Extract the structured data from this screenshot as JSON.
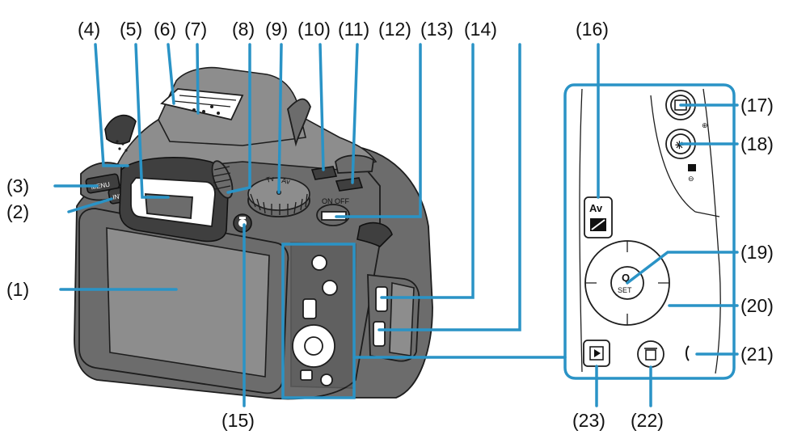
{
  "callouts": [
    {
      "id": 1,
      "label": "(1)"
    },
    {
      "id": 2,
      "label": "(2)"
    },
    {
      "id": 3,
      "label": "(3)"
    },
    {
      "id": 4,
      "label": "(4)"
    },
    {
      "id": 5,
      "label": "(5)"
    },
    {
      "id": 6,
      "label": "(6)"
    },
    {
      "id": 7,
      "label": "(7)"
    },
    {
      "id": 8,
      "label": "(8)"
    },
    {
      "id": 9,
      "label": "(9)"
    },
    {
      "id": 10,
      "label": "(10)"
    },
    {
      "id": 11,
      "label": "(11)"
    },
    {
      "id": 12,
      "label": "(12)"
    },
    {
      "id": 13,
      "label": "(13)"
    },
    {
      "id": 14,
      "label": "(14)"
    },
    {
      "id": 15,
      "label": "(15)"
    },
    {
      "id": 16,
      "label": "(16)"
    },
    {
      "id": 17,
      "label": "(17)"
    },
    {
      "id": 18,
      "label": "(18)"
    },
    {
      "id": 19,
      "label": "(19)"
    },
    {
      "id": 20,
      "label": "(20)"
    },
    {
      "id": 21,
      "label": "(21)"
    },
    {
      "id": 22,
      "label": "(22)"
    },
    {
      "id": 23,
      "label": "(23)"
    }
  ],
  "button_text": {
    "menu": "MENU",
    "info": "INFO",
    "av": "Av",
    "set": "SET",
    "on_off": "ON OFF"
  },
  "colors": {
    "leader": "#2a93c6",
    "body": "#6c6c6c",
    "outline": "#1d1d1d"
  },
  "icons": [
    "zoom-in-icon",
    "zoom-out-icon",
    "index-icon",
    "af-point-icon",
    "ae-lock-icon",
    "exposure-compensation-icon",
    "play-icon",
    "trash-icon",
    "q-icon",
    "live-view-icon"
  ]
}
